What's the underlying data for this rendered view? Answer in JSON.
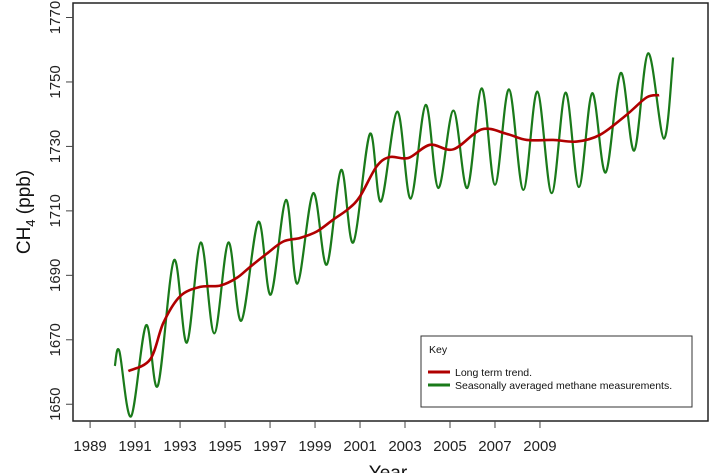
{
  "chart_data": {
    "type": "line",
    "title": "",
    "xlabel": "Year",
    "ylabel_main": "CH",
    "ylabel_sub": "4",
    "ylabel_unit": " (ppb)",
    "xlim": [
      1988.24,
      2016.47
    ],
    "ylim": [
      1644.8,
      1774.5
    ],
    "x_ticks": [
      "1989",
      "1991",
      "1993",
      "1995",
      "1997",
      "1999",
      "2001",
      "2003",
      "2005",
      "2007",
      "2009"
    ],
    "y_ticks": [
      "1650",
      "1670",
      "1690",
      "1710",
      "1730",
      "1750",
      "1770"
    ],
    "grid": false,
    "legend": {
      "title": "Key",
      "placement": "bottom-right",
      "entries": [
        "Long term trend.",
        "Seasonally averaged methane measurements."
      ]
    },
    "series": [
      {
        "name": "Long term trend.",
        "color": "#b00000",
        "x": [
          1990.7,
          1991.67,
          1992.26,
          1993.0,
          1993.89,
          1994.78,
          1995.52,
          1996.11,
          1996.85,
          1997.59,
          1998.33,
          1999.08,
          1999.81,
          2000.48,
          2001.0,
          2001.74,
          2002.33,
          2003.15,
          2004.11,
          2005.15,
          2006.41,
          2007.52,
          2008.41,
          2009.59,
          2010.63,
          2011.67,
          2012.85,
          2013.74,
          2014.3
        ],
        "y": [
          1660.3,
          1663.9,
          1675.3,
          1683.5,
          1686.4,
          1686.8,
          1689.2,
          1692.6,
          1696.7,
          1700.5,
          1701.6,
          1703.6,
          1707.3,
          1710.6,
          1714.5,
          1723.8,
          1726.7,
          1726.4,
          1730.5,
          1729.1,
          1735.3,
          1733.9,
          1732.0,
          1732.0,
          1731.5,
          1733.6,
          1739.8,
          1745.2,
          1745.9
        ]
      },
      {
        "name": "Seasonally averaged methane measurements.",
        "color": "#1a7a1a",
        "x": [
          1990.1,
          1990.3,
          1990.82,
          1991.49,
          1992.01,
          1992.73,
          1993.3,
          1993.92,
          1994.52,
          1995.15,
          1995.72,
          1996.48,
          1997.03,
          1997.71,
          1998.21,
          1998.92,
          1999.52,
          2000.16,
          2000.7,
          2001.44,
          2001.93,
          2002.66,
          2003.25,
          2003.92,
          2004.48,
          2005.15,
          2005.77,
          2006.41,
          2007.0,
          2007.62,
          2008.26,
          2008.88,
          2009.52,
          2010.14,
          2010.73,
          2011.32,
          2011.92,
          2012.59,
          2013.19,
          2013.81,
          2014.51,
          2014.92
        ],
        "y": [
          1661.9,
          1666.5,
          1646.2,
          1674.5,
          1655.7,
          1694.7,
          1669.1,
          1700.2,
          1672.0,
          1700.2,
          1675.9,
          1706.6,
          1684.0,
          1713.4,
          1687.4,
          1715.5,
          1693.3,
          1722.7,
          1700.2,
          1733.9,
          1712.9,
          1740.8,
          1713.8,
          1742.9,
          1717.1,
          1741.1,
          1717.1,
          1748.0,
          1718.1,
          1747.7,
          1716.5,
          1747.0,
          1715.5,
          1746.7,
          1717.4,
          1746.5,
          1721.9,
          1752.8,
          1728.7,
          1758.9,
          1732.4,
          1757.6
        ]
      }
    ]
  }
}
